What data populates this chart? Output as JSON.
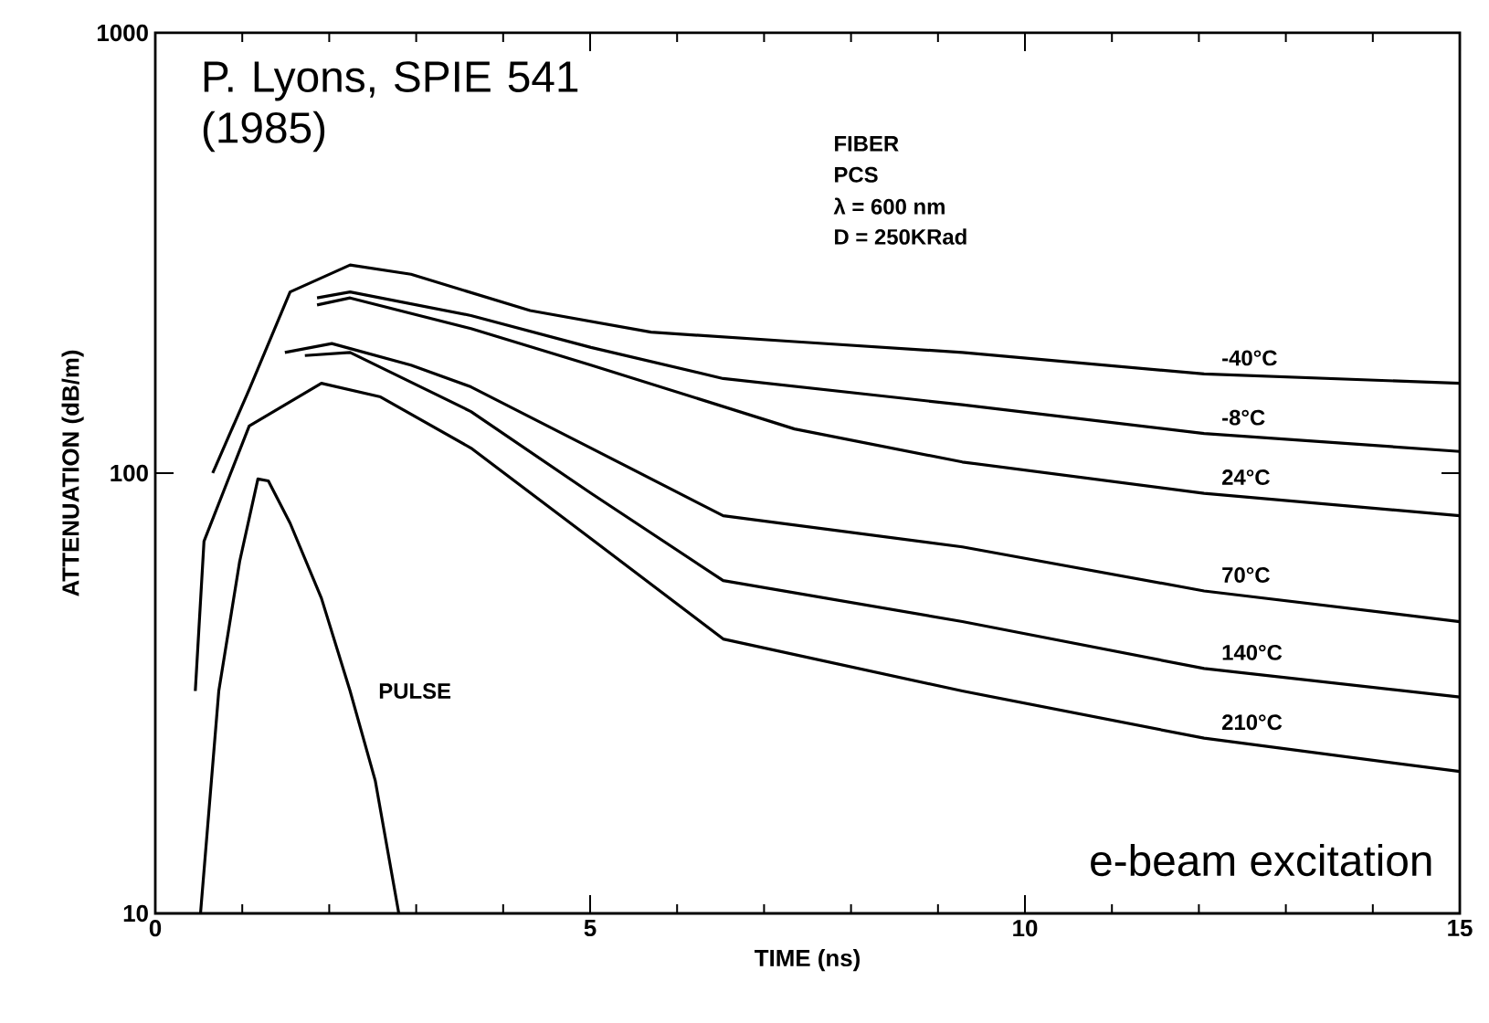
{
  "chart_data": {
    "type": "line",
    "xlabel": "TIME (ns)",
    "ylabel": "ATTENUATION (dB/m)",
    "xlim": [
      0,
      15
    ],
    "ylim": [
      10,
      1000
    ],
    "xticks": [
      0,
      5,
      10,
      15
    ],
    "yticks": [
      10,
      100,
      1000
    ],
    "log": "y",
    "grid": false,
    "legend": false,
    "marker": "none",
    "line_style": "solid",
    "series": [
      {
        "name": "-40°C",
        "color": "#000000",
        "x": [
          0.66,
          1.08,
          1.55,
          2.24,
          2.94,
          4.31,
          5.7,
          7.35,
          9.28,
          12.06,
          15
        ],
        "values": [
          100,
          155,
          258,
          297,
          283,
          234,
          209,
          199,
          188,
          168,
          160
        ]
      },
      {
        "name": "-8°C",
        "color": "#000000",
        "x": [
          1.86,
          2.24,
          3.63,
          5.01,
          6.53,
          9.28,
          12.06,
          15
        ],
        "values": [
          250,
          258,
          228,
          193,
          164,
          143,
          123,
          112
        ]
      },
      {
        "name": "24°C",
        "color": "#000000",
        "x": [
          1.86,
          2.24,
          3.63,
          5.01,
          7.35,
          9.28,
          12.06,
          15
        ],
        "values": [
          241,
          250,
          213,
          176,
          126,
          106,
          90,
          80
        ]
      },
      {
        "name": "70°C",
        "color": "#000000",
        "x": [
          1.49,
          2.03,
          2.94,
          3.63,
          5.01,
          6.53,
          9.28,
          12.06,
          15
        ],
        "values": [
          188,
          197,
          176,
          157,
          114,
          80,
          68,
          54,
          46
        ]
      },
      {
        "name": "140°C",
        "color": "#000000",
        "x": [
          1.72,
          2.24,
          3.63,
          5.01,
          6.53,
          9.28,
          12.06,
          15
        ],
        "values": [
          185,
          188,
          138,
          90,
          57,
          46,
          36,
          31
        ]
      },
      {
        "name": "210°C",
        "color": "#000000",
        "x": [
          0.46,
          0.56,
          1.08,
          1.91,
          2.59,
          3.63,
          5.01,
          6.53,
          9.28,
          12.06,
          15
        ],
        "values": [
          32,
          70,
          128,
          160,
          149,
          114,
          71,
          42,
          32,
          25,
          21
        ]
      },
      {
        "name": "PULSE",
        "color": "#000000",
        "x": [
          0.52,
          0.73,
          0.97,
          1.18,
          1.3,
          1.55,
          1.91,
          2.24,
          2.53,
          2.8
        ],
        "values": [
          10,
          32,
          63,
          97,
          96,
          77,
          52,
          32,
          20,
          10
        ]
      }
    ],
    "annotations": [
      "P. Lyons, SPIE 541 (1985)",
      "FIBER",
      "PCS",
      "λ = 600 nm",
      "D = 250KRad",
      "e-beam excitation"
    ]
  }
}
